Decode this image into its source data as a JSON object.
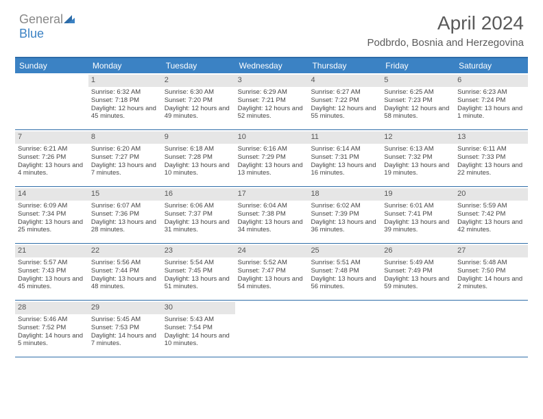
{
  "logo": {
    "word1": "General",
    "word2": "Blue"
  },
  "title": "April 2024",
  "location": "Podbrdo, Bosnia and Herzegovina",
  "colors": {
    "header_bg": "#3b82c4",
    "header_border": "#2d6ca8",
    "day_num_bg": "#e6e6e6",
    "text": "#444444",
    "logo_gray": "#888888",
    "logo_blue": "#3b82c4"
  },
  "days_of_week": [
    "Sunday",
    "Monday",
    "Tuesday",
    "Wednesday",
    "Thursday",
    "Friday",
    "Saturday"
  ],
  "weeks": [
    [
      {
        "n": "",
        "sr": "",
        "ss": "",
        "dl": ""
      },
      {
        "n": "1",
        "sr": "Sunrise: 6:32 AM",
        "ss": "Sunset: 7:18 PM",
        "dl": "Daylight: 12 hours and 45 minutes."
      },
      {
        "n": "2",
        "sr": "Sunrise: 6:30 AM",
        "ss": "Sunset: 7:20 PM",
        "dl": "Daylight: 12 hours and 49 minutes."
      },
      {
        "n": "3",
        "sr": "Sunrise: 6:29 AM",
        "ss": "Sunset: 7:21 PM",
        "dl": "Daylight: 12 hours and 52 minutes."
      },
      {
        "n": "4",
        "sr": "Sunrise: 6:27 AM",
        "ss": "Sunset: 7:22 PM",
        "dl": "Daylight: 12 hours and 55 minutes."
      },
      {
        "n": "5",
        "sr": "Sunrise: 6:25 AM",
        "ss": "Sunset: 7:23 PM",
        "dl": "Daylight: 12 hours and 58 minutes."
      },
      {
        "n": "6",
        "sr": "Sunrise: 6:23 AM",
        "ss": "Sunset: 7:24 PM",
        "dl": "Daylight: 13 hours and 1 minute."
      }
    ],
    [
      {
        "n": "7",
        "sr": "Sunrise: 6:21 AM",
        "ss": "Sunset: 7:26 PM",
        "dl": "Daylight: 13 hours and 4 minutes."
      },
      {
        "n": "8",
        "sr": "Sunrise: 6:20 AM",
        "ss": "Sunset: 7:27 PM",
        "dl": "Daylight: 13 hours and 7 minutes."
      },
      {
        "n": "9",
        "sr": "Sunrise: 6:18 AM",
        "ss": "Sunset: 7:28 PM",
        "dl": "Daylight: 13 hours and 10 minutes."
      },
      {
        "n": "10",
        "sr": "Sunrise: 6:16 AM",
        "ss": "Sunset: 7:29 PM",
        "dl": "Daylight: 13 hours and 13 minutes."
      },
      {
        "n": "11",
        "sr": "Sunrise: 6:14 AM",
        "ss": "Sunset: 7:31 PM",
        "dl": "Daylight: 13 hours and 16 minutes."
      },
      {
        "n": "12",
        "sr": "Sunrise: 6:13 AM",
        "ss": "Sunset: 7:32 PM",
        "dl": "Daylight: 13 hours and 19 minutes."
      },
      {
        "n": "13",
        "sr": "Sunrise: 6:11 AM",
        "ss": "Sunset: 7:33 PM",
        "dl": "Daylight: 13 hours and 22 minutes."
      }
    ],
    [
      {
        "n": "14",
        "sr": "Sunrise: 6:09 AM",
        "ss": "Sunset: 7:34 PM",
        "dl": "Daylight: 13 hours and 25 minutes."
      },
      {
        "n": "15",
        "sr": "Sunrise: 6:07 AM",
        "ss": "Sunset: 7:36 PM",
        "dl": "Daylight: 13 hours and 28 minutes."
      },
      {
        "n": "16",
        "sr": "Sunrise: 6:06 AM",
        "ss": "Sunset: 7:37 PM",
        "dl": "Daylight: 13 hours and 31 minutes."
      },
      {
        "n": "17",
        "sr": "Sunrise: 6:04 AM",
        "ss": "Sunset: 7:38 PM",
        "dl": "Daylight: 13 hours and 34 minutes."
      },
      {
        "n": "18",
        "sr": "Sunrise: 6:02 AM",
        "ss": "Sunset: 7:39 PM",
        "dl": "Daylight: 13 hours and 36 minutes."
      },
      {
        "n": "19",
        "sr": "Sunrise: 6:01 AM",
        "ss": "Sunset: 7:41 PM",
        "dl": "Daylight: 13 hours and 39 minutes."
      },
      {
        "n": "20",
        "sr": "Sunrise: 5:59 AM",
        "ss": "Sunset: 7:42 PM",
        "dl": "Daylight: 13 hours and 42 minutes."
      }
    ],
    [
      {
        "n": "21",
        "sr": "Sunrise: 5:57 AM",
        "ss": "Sunset: 7:43 PM",
        "dl": "Daylight: 13 hours and 45 minutes."
      },
      {
        "n": "22",
        "sr": "Sunrise: 5:56 AM",
        "ss": "Sunset: 7:44 PM",
        "dl": "Daylight: 13 hours and 48 minutes."
      },
      {
        "n": "23",
        "sr": "Sunrise: 5:54 AM",
        "ss": "Sunset: 7:45 PM",
        "dl": "Daylight: 13 hours and 51 minutes."
      },
      {
        "n": "24",
        "sr": "Sunrise: 5:52 AM",
        "ss": "Sunset: 7:47 PM",
        "dl": "Daylight: 13 hours and 54 minutes."
      },
      {
        "n": "25",
        "sr": "Sunrise: 5:51 AM",
        "ss": "Sunset: 7:48 PM",
        "dl": "Daylight: 13 hours and 56 minutes."
      },
      {
        "n": "26",
        "sr": "Sunrise: 5:49 AM",
        "ss": "Sunset: 7:49 PM",
        "dl": "Daylight: 13 hours and 59 minutes."
      },
      {
        "n": "27",
        "sr": "Sunrise: 5:48 AM",
        "ss": "Sunset: 7:50 PM",
        "dl": "Daylight: 14 hours and 2 minutes."
      }
    ],
    [
      {
        "n": "28",
        "sr": "Sunrise: 5:46 AM",
        "ss": "Sunset: 7:52 PM",
        "dl": "Daylight: 14 hours and 5 minutes."
      },
      {
        "n": "29",
        "sr": "Sunrise: 5:45 AM",
        "ss": "Sunset: 7:53 PM",
        "dl": "Daylight: 14 hours and 7 minutes."
      },
      {
        "n": "30",
        "sr": "Sunrise: 5:43 AM",
        "ss": "Sunset: 7:54 PM",
        "dl": "Daylight: 14 hours and 10 minutes."
      },
      {
        "n": "",
        "sr": "",
        "ss": "",
        "dl": ""
      },
      {
        "n": "",
        "sr": "",
        "ss": "",
        "dl": ""
      },
      {
        "n": "",
        "sr": "",
        "ss": "",
        "dl": ""
      },
      {
        "n": "",
        "sr": "",
        "ss": "",
        "dl": ""
      }
    ]
  ]
}
